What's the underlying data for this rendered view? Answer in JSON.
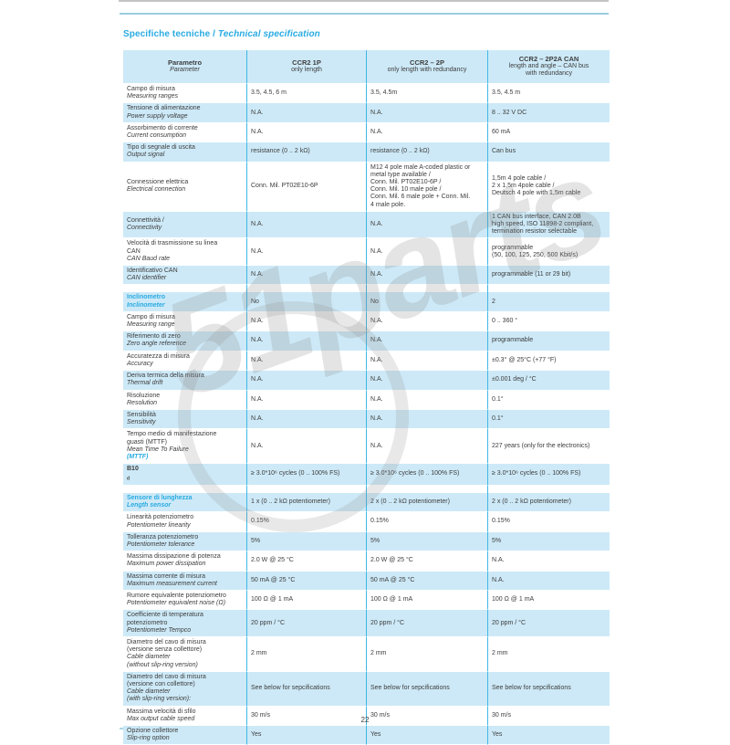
{
  "page": {
    "title_it": "Specifiche tecniche",
    "title_sep": " / ",
    "title_en": "Technical specification",
    "page_number": "22",
    "watermark": "51parts"
  },
  "colors": {
    "accent_cyan": "#29abe2",
    "row_light_blue": "#cde9f7",
    "column_separator": "#3eb7e5",
    "text": "#3d3d3d"
  },
  "table": {
    "columns": [
      {
        "title": "Parametro",
        "subtitle": "Parameter"
      },
      {
        "title": "CCR2 1P",
        "subtitle": "only length"
      },
      {
        "title": "CCR2 – 2P",
        "subtitle": "only length with redundancy"
      },
      {
        "title": "CCR2 – 2P2A CAN",
        "subtitle": "length and angle – CAN bus\nwith redundancy"
      }
    ],
    "rows": [
      {
        "type": "row",
        "it": "Campo di misura",
        "en": "Measuring ranges",
        "values": [
          "3.5, 4.5, 6 m",
          "3.5, 4.5m",
          "3.5, 4.5 m"
        ]
      },
      {
        "type": "row",
        "it": "Tensione di alimentazione",
        "en": "Power supply voltage",
        "values": [
          "N.A.",
          "N.A.",
          "8 .. 32 V DC"
        ]
      },
      {
        "type": "row",
        "it": "Assorbimento di corrente",
        "en": "Current consumption",
        "values": [
          "N.A.",
          "N.A.",
          "60 mA"
        ]
      },
      {
        "type": "row",
        "it": "Tipo di segnale di uscita",
        "en": "Output signal",
        "values": [
          "resistance (0 .. 2 kΩ)",
          "resistance (0 .. 2 kΩ)",
          "Can bus"
        ]
      },
      {
        "type": "row",
        "it": "Connessione elettrica",
        "en": "Electrical connection",
        "values": [
          "Conn. Mil. PT02E10-6P",
          "M12  4 pole male A-coded plastic or\nmetal type available /\nConn. Mil. PT02E10-6P /\nConn. Mil. 10 male pole /\nConn. Mil. 6 male pole + Conn. Mil.\n4 male pole.",
          "1,5m 4 pole cable /\n2 x 1,5m 4pole cable /\nDeutsch 4 pole with 1,5m cable"
        ]
      },
      {
        "type": "row",
        "inline": true,
        "it": "Connettività / ",
        "en": "Connectivity",
        "values": [
          "N.A.",
          "N.A.",
          "1 CAN bus interface, CAN 2.0B\nhigh speed, ISO 11898-2 compliant,\ntermination resistor selectable"
        ]
      },
      {
        "type": "row",
        "it": "Velocità di trasmissione su linea\nCAN",
        "en": "CAN Baud rate",
        "values": [
          "N.A.",
          "N.A.",
          "programmable\n(50, 100, 125, 250, 500 Kbit/s)"
        ]
      },
      {
        "type": "row",
        "it": "Identificativo CAN",
        "en": "CAN identifier",
        "values": [
          "N.A.",
          "N.A.",
          "programmable (11 or 29 bit)"
        ]
      },
      {
        "type": "gap"
      },
      {
        "type": "section",
        "it": "Inclinometro",
        "en": "Inclinometer",
        "values": [
          "No",
          "No",
          "2"
        ]
      },
      {
        "type": "row",
        "it": "Campo di misura",
        "en": "Measuring range",
        "values": [
          "N.A.",
          "N.A.",
          "0 .. 360 °"
        ]
      },
      {
        "type": "row",
        "it": "Riferimento di zero",
        "en": "Zero angle reference",
        "values": [
          "N.A.",
          "N.A.",
          "programmable"
        ]
      },
      {
        "type": "row",
        "it": "Accuratezza di misura",
        "en": "Accuracy",
        "values": [
          "N.A.",
          "N.A.",
          "±0.3° @ 25°C (+77 °F)"
        ]
      },
      {
        "type": "row",
        "it": "Deriva termica della misura",
        "en": "Thermal drift",
        "values": [
          "N.A.",
          "N.A.",
          "±0.001 deg / °C"
        ]
      },
      {
        "type": "row",
        "it": "Risoluzione",
        "en": "Resolution",
        "values": [
          "N.A.",
          "N.A.",
          "0.1°"
        ]
      },
      {
        "type": "row",
        "it": "Sensibilità",
        "en": "Sensitivity",
        "values": [
          "N.A.",
          "N.A.",
          "0.1°"
        ]
      },
      {
        "type": "row",
        "it": "Tempo medio di manifestazione\nguasti (MTTF)",
        "en": "Mean Time To Failure ",
        "en_accent": "(MTTF)",
        "values": [
          "N.A.",
          "N.A.",
          "227 years (only for the electronics)"
        ]
      },
      {
        "type": "row",
        "emph": true,
        "it": "B10",
        "sub": "d",
        "en": "",
        "values": [
          "≥ 3.0*10⁶  cycles (0 .. 100% FS)",
          "≥ 3.0*10⁶  cycles (0 .. 100% FS)",
          "≥ 3.0*10⁶  cycles (0 .. 100% FS)"
        ]
      },
      {
        "type": "gap"
      },
      {
        "type": "section",
        "it": "Sensore di  lunghezza",
        "en": "Length sensor",
        "values": [
          "1 x (0 .. 2 kΩ potentiometer)",
          "2 x (0 .. 2 kΩ potentiometer)",
          "2 x (0 .. 2 kΩ potentiometer)"
        ]
      },
      {
        "type": "row",
        "it": "Linearità potenziometro",
        "en": "Potentiometer linearity",
        "values": [
          "0.15%",
          "0.15%",
          "0.15%"
        ]
      },
      {
        "type": "row",
        "it": "Tolleranza potenziometro",
        "en": "Potentiometer tolerance",
        "values": [
          "5%",
          "5%",
          "5%"
        ]
      },
      {
        "type": "row",
        "it": "Massima dissipazione di potenza",
        "en": "Maximum power dissipation",
        "values": [
          "2.0 W @ 25 °C",
          "2.0 W @ 25 °C",
          "N.A."
        ]
      },
      {
        "type": "row",
        "it": "Massima corrente di misura",
        "en": "Maximum measurement current",
        "values": [
          "50 mA @ 25 °C",
          "50 mA @ 25 °C",
          "N.A."
        ]
      },
      {
        "type": "row",
        "it": "Rumore equivalente potenziometro",
        "en": "Potentiometer equivalent noise (Ω)",
        "values": [
          "100 Ω @ 1 mA",
          "100 Ω @ 1 mA",
          "100 Ω @ 1 mA"
        ]
      },
      {
        "type": "row",
        "it": "Coefficiente di temperatura\npotenziometro",
        "en": "Potentiometer Tempco",
        "values": [
          "20 ppm / °C",
          "20 ppm / °C",
          "20 ppm / °C"
        ]
      },
      {
        "type": "row",
        "it": "Diametro del cavo di misura\n(versione senza collettore)",
        "en": "Cable diameter\n(without slip-ring version)",
        "values": [
          "2 mm",
          "2 mm",
          "2 mm"
        ]
      },
      {
        "type": "row",
        "it": "Diametro del cavo di misura\n(versione con collettore)",
        "en": "Cable diameter\n(with slip-ring version):",
        "values": [
          "See below for sepcifications",
          "See below for sepcifications",
          "See below for sepcifications"
        ]
      },
      {
        "type": "row",
        "it": "Massima velocità di sfilo",
        "en": "Max output cable speed",
        "values": [
          "30 m/s",
          "30 m/s",
          "30 m/s"
        ]
      },
      {
        "type": "row",
        "it": "Opzione collettore",
        "en": "Slip-ring option",
        "values": [
          "Yes",
          "Yes",
          "Yes"
        ]
      }
    ]
  }
}
